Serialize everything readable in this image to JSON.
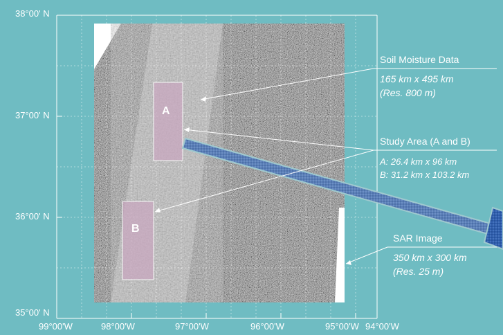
{
  "latitude_labels": [
    "38°00' N",
    "37°00' N",
    "36°00' N",
    "35°00' N"
  ],
  "longitude_labels": [
    "99°00'W",
    "98°00'W",
    "97°00'W",
    "96°00'W",
    "95°00'W",
    "94°00'W"
  ],
  "study_boxes": [
    {
      "label": "A"
    },
    {
      "label": "B"
    }
  ],
  "callouts": {
    "soil_moisture": {
      "title": "Soil Moisture Data",
      "size": "165 km x 495 km",
      "resolution": "(Res. 800 m)"
    },
    "study_area": {
      "title": "Study Area (A and B)",
      "line_a": "A: 26.4 km x 96 km",
      "line_b": "B: 31.2 km x 103.2 km"
    },
    "sar_image": {
      "title": "SAR Image",
      "size": "350 km x 300 km",
      "resolution": "(Res. 25 m)"
    }
  },
  "colors": {
    "background": "#6fbcc2",
    "text": "#ffffff",
    "arrow_fill": "#4a6fa8"
  }
}
